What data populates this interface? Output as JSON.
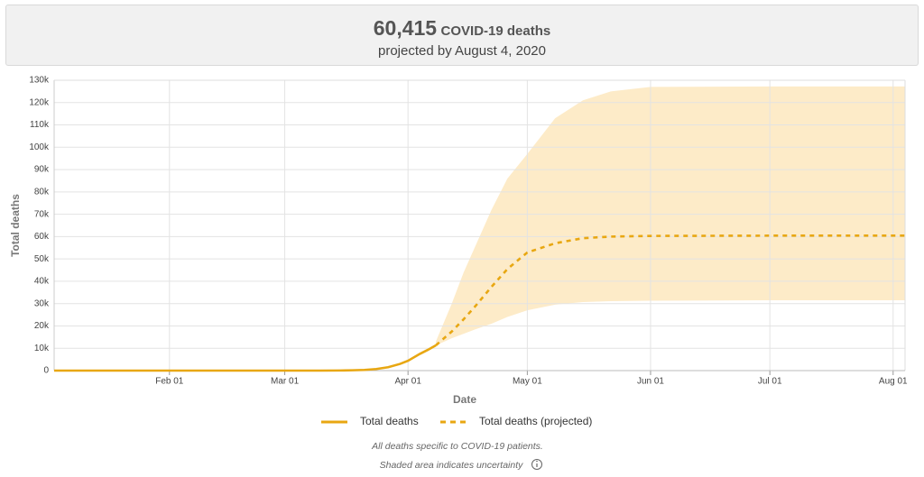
{
  "header": {
    "value": "60,415",
    "label": "COVID-19 deaths",
    "subtitle": "projected by August 4, 2020"
  },
  "chart_data": {
    "type": "line",
    "y_label": "Total deaths",
    "x_label": "Date",
    "x": [
      "01-03",
      "03-10",
      "03-15",
      "03-18",
      "03-21",
      "03-24",
      "03-27",
      "03-30",
      "04-01",
      "04-04",
      "04-06",
      "04-08",
      "04-12",
      "04-15",
      "04-18",
      "04-22",
      "04-26",
      "05-01",
      "05-08",
      "05-15",
      "05-22",
      "06-01",
      "07-01",
      "08-04"
    ],
    "series": [
      {
        "name": "Total deaths",
        "color": "#e8a712",
        "dashed": false,
        "values": [
          0,
          0,
          50,
          150,
          300,
          700,
          1500,
          3000,
          4400,
          7500,
          9300,
          11300,
          null,
          null,
          null,
          null,
          null,
          null,
          null,
          null,
          null,
          null,
          null,
          null
        ]
      },
      {
        "name": "Total deaths (projected)",
        "color": "#e8a712",
        "dashed": true,
        "values": [
          null,
          null,
          null,
          null,
          null,
          null,
          null,
          null,
          null,
          null,
          null,
          11300,
          17500,
          23000,
          29000,
          37500,
          45500,
          52900,
          57000,
          59300,
          60000,
          60300,
          60415,
          60415
        ]
      }
    ],
    "uncertainty": {
      "color": "#fdebc8",
      "upper": [
        null,
        null,
        null,
        null,
        null,
        null,
        null,
        null,
        null,
        null,
        null,
        13000,
        30000,
        44000,
        56000,
        72000,
        86000,
        97000,
        113000,
        121000,
        125000,
        127000,
        127200,
        127200
      ],
      "lower": [
        null,
        null,
        null,
        null,
        null,
        null,
        null,
        null,
        null,
        null,
        null,
        11300,
        14500,
        16500,
        18500,
        21000,
        24000,
        27000,
        29500,
        30700,
        31100,
        31300,
        31500,
        31500
      ]
    },
    "xlim": [
      "01-03",
      "08-04"
    ],
    "xticks": [
      {
        "value": "02-01",
        "label": "Feb 01"
      },
      {
        "value": "03-01",
        "label": "Mar 01"
      },
      {
        "value": "04-01",
        "label": "Apr 01"
      },
      {
        "value": "05-01",
        "label": "May 01"
      },
      {
        "value": "06-01",
        "label": "Jun 01"
      },
      {
        "value": "07-01",
        "label": "Jul 01"
      },
      {
        "value": "08-01",
        "label": "Aug 01"
      }
    ],
    "ylim": [
      0,
      130000
    ],
    "yticks": [
      0,
      {
        "value": 10000,
        "label": "10k"
      },
      {
        "value": 20000,
        "label": "20k"
      },
      {
        "value": 30000,
        "label": "30k"
      },
      {
        "value": 40000,
        "label": "40k"
      },
      {
        "value": 50000,
        "label": "50k"
      },
      {
        "value": 60000,
        "label": "60k"
      },
      {
        "value": 70000,
        "label": "70k"
      },
      {
        "value": 80000,
        "label": "80k"
      },
      {
        "value": 90000,
        "label": "90k"
      },
      {
        "value": 100000,
        "label": "100k"
      },
      {
        "value": 110000,
        "label": "110k"
      },
      {
        "value": 120000,
        "label": "120k"
      },
      {
        "value": 130000,
        "label": "130k"
      }
    ],
    "grid": true
  },
  "notes": [
    "All deaths specific to COVID-19 patients.",
    "Shaded area indicates uncertainty"
  ]
}
